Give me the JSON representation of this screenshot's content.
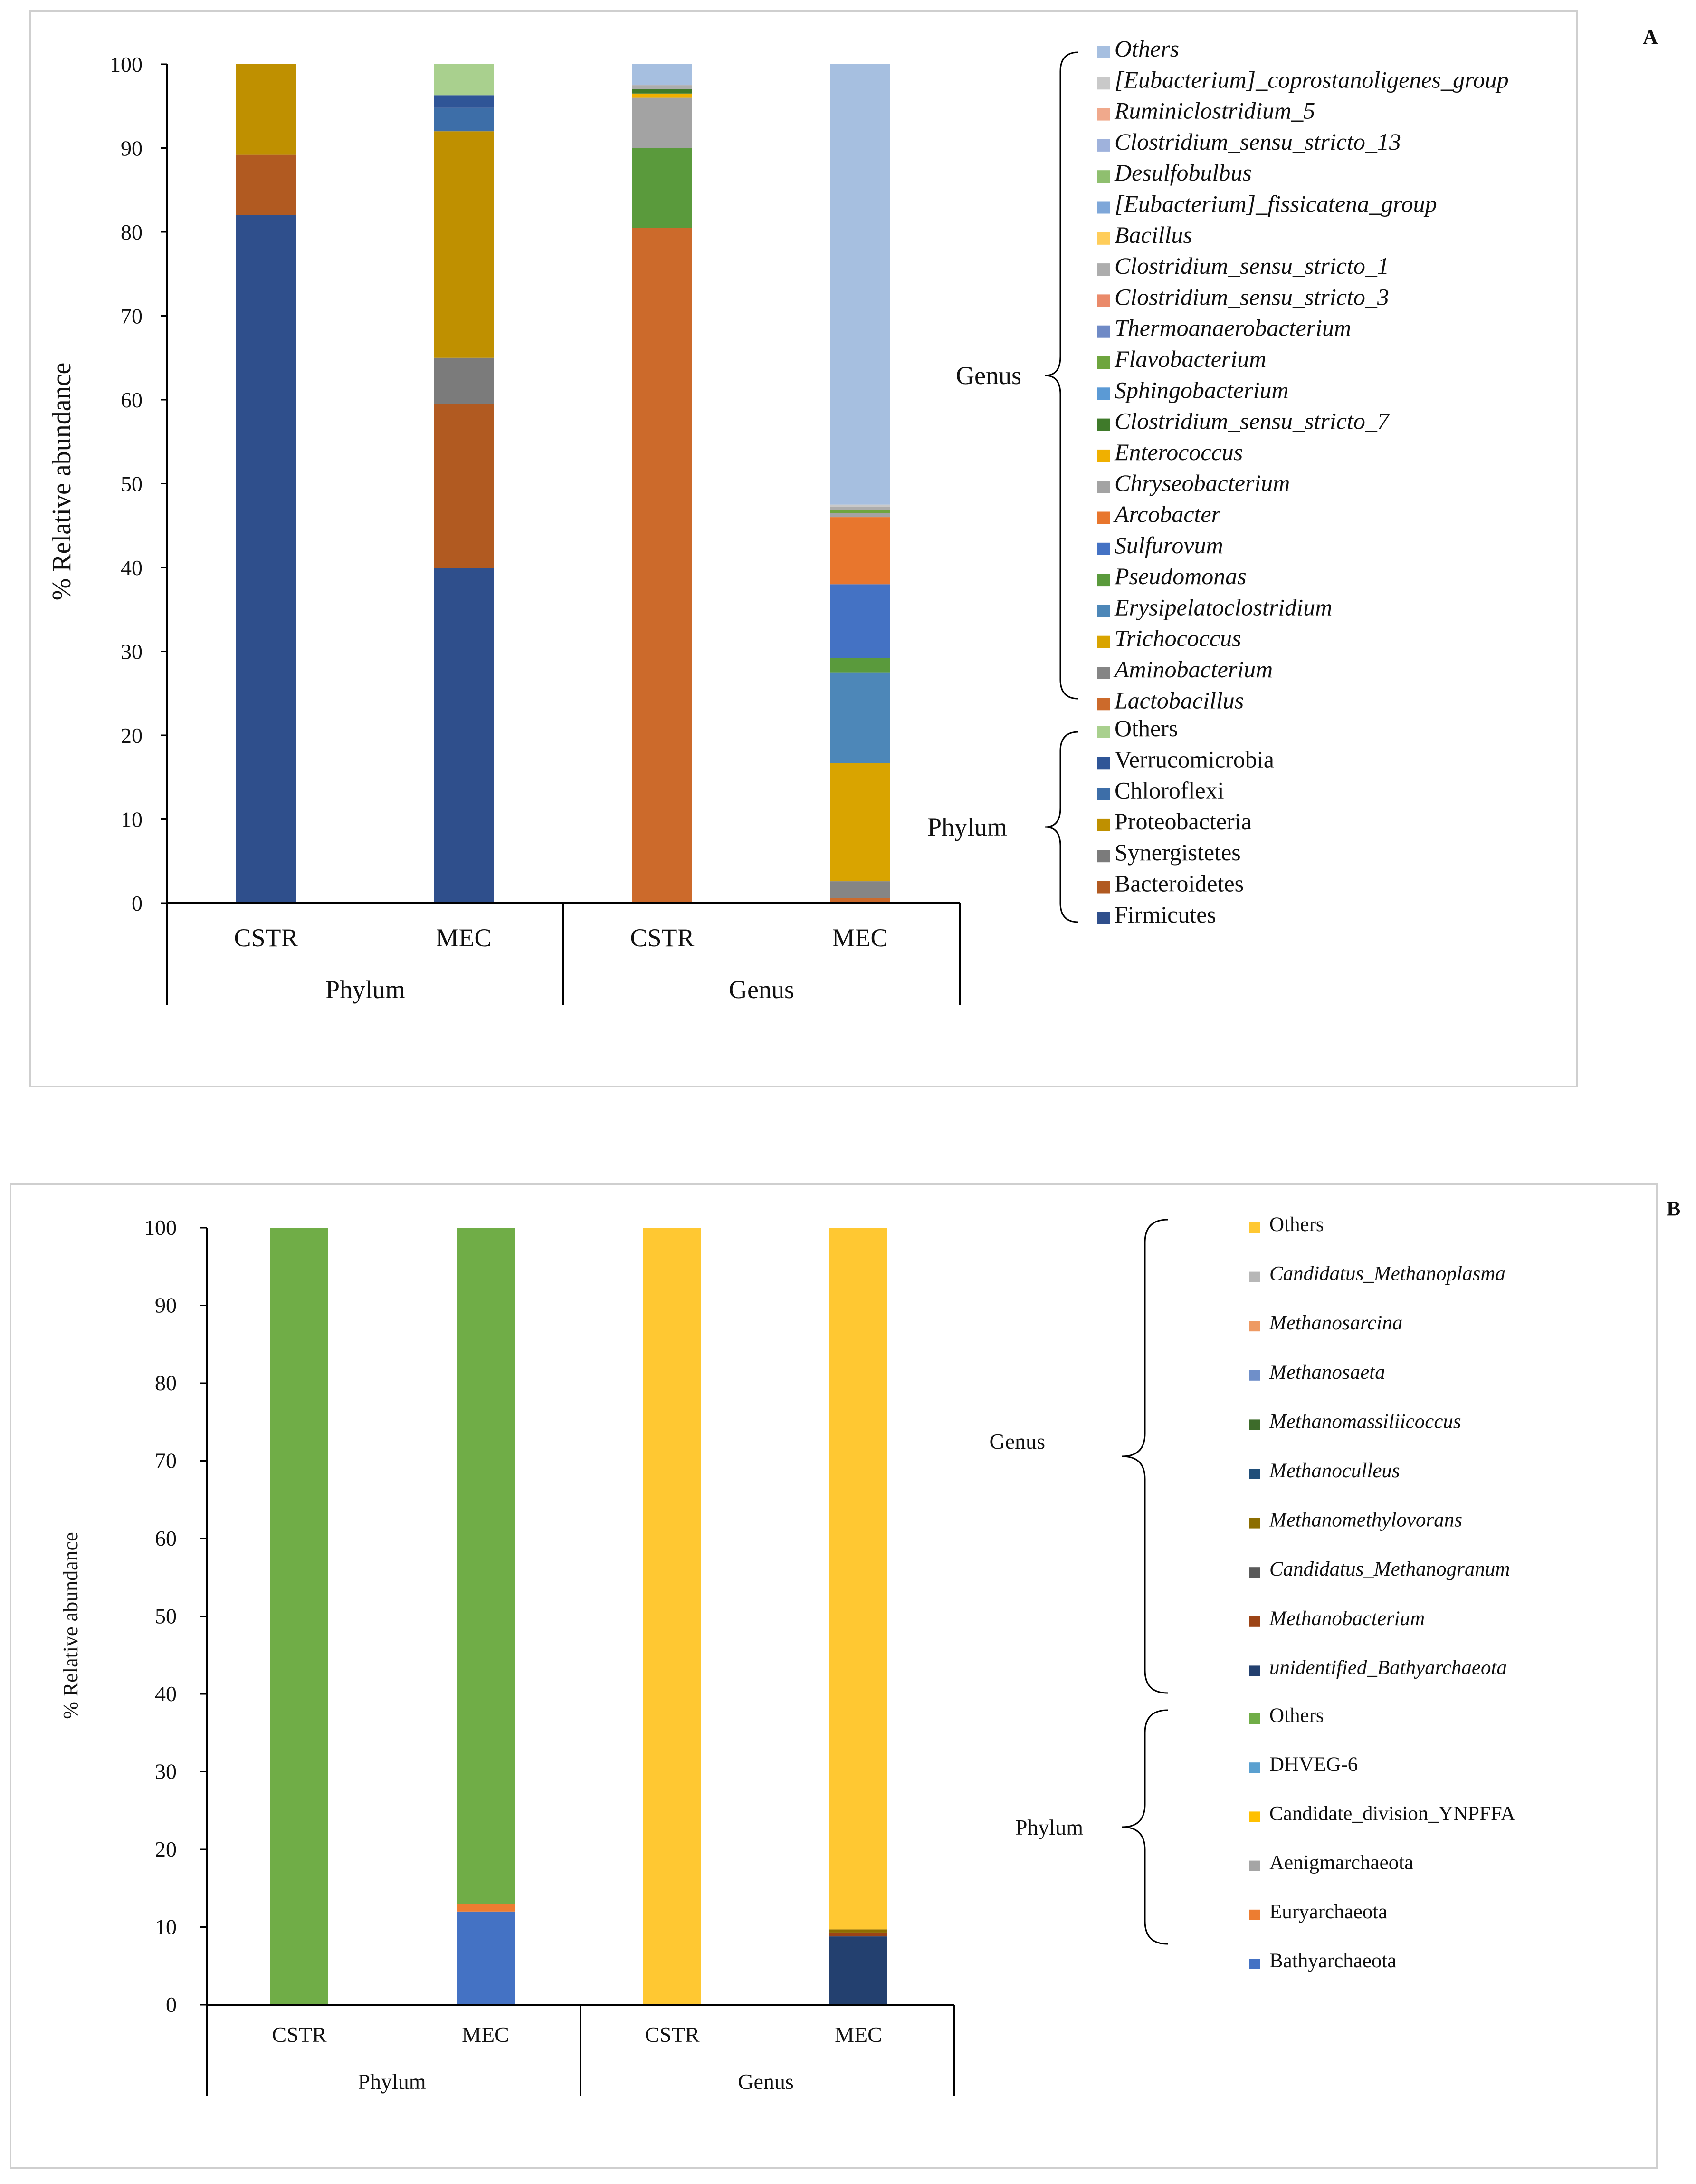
{
  "panels": [
    {
      "id": "A",
      "label": "A",
      "ylabel": "% Relative abundance",
      "ylim": [
        0,
        100
      ],
      "yticks": [
        0,
        10,
        20,
        30,
        40,
        50,
        60,
        70,
        80,
        90,
        100
      ],
      "columns": [
        "CSTR",
        "MEC",
        "CSTR",
        "MEC"
      ],
      "groups": [
        "Phylum",
        "Genus"
      ],
      "legend_groups": [
        {
          "name": "Genus",
          "items": [
            {
              "label": "Others",
              "color": "#a6bfe0",
              "italic": true
            },
            {
              "label": "[Eubacterium]_coprostanoligenes_group",
              "color": "#c9c9c9",
              "italic": true
            },
            {
              "label": "Ruminiclostridium_5",
              "color": "#f0a98c",
              "italic": true
            },
            {
              "label": "Clostridium_sensu_stricto_13",
              "color": "#9fb2dc",
              "italic": true
            },
            {
              "label": "Desulfobulbus",
              "color": "#8fbf6f",
              "italic": true
            },
            {
              "label": "[Eubacterium]_fissicatena_group",
              "color": "#7ea7d9",
              "italic": true
            },
            {
              "label": "Bacillus",
              "color": "#ffcd5a",
              "italic": true
            },
            {
              "label": "Clostridium_sensu_stricto_1",
              "color": "#adadad",
              "italic": true
            },
            {
              "label": "Clostridium_sensu_stricto_3",
              "color": "#ea8a6a",
              "italic": true
            },
            {
              "label": "Thermoanaerobacterium",
              "color": "#6f8ac6",
              "italic": true
            },
            {
              "label": "Flavobacterium",
              "color": "#6ea53e",
              "italic": true
            },
            {
              "label": "Sphingobacterium",
              "color": "#5b9ad5",
              "italic": true
            },
            {
              "label": "Clostridium_sensu_stricto_7",
              "color": "#3f7a2a",
              "italic": true
            },
            {
              "label": "Enterococcus",
              "color": "#f0b000",
              "italic": true
            },
            {
              "label": "Chryseobacterium",
              "color": "#a3a3a3",
              "italic": true
            },
            {
              "label": "Arcobacter",
              "color": "#e8762d",
              "italic": true
            },
            {
              "label": "Sulfurovum",
              "color": "#4472c4",
              "italic": true
            },
            {
              "label": "Pseudomonas",
              "color": "#5a9a3c",
              "italic": true
            },
            {
              "label": "Erysipelatoclostridium",
              "color": "#4d87b8",
              "italic": true
            },
            {
              "label": "Trichococcus",
              "color": "#d9a400",
              "italic": true
            },
            {
              "label": "Aminobacterium",
              "color": "#858585",
              "italic": true
            },
            {
              "label": "Lactobacillus",
              "color": "#cc6a2b",
              "italic": true
            }
          ]
        },
        {
          "name": "Phylum",
          "items": [
            {
              "label": "Others",
              "color": "#a9d08e",
              "italic": false
            },
            {
              "label": "Verrucomicrobia",
              "color": "#2f5597",
              "italic": false
            },
            {
              "label": "Chloroflexi",
              "color": "#3d6ea8",
              "italic": false
            },
            {
              "label": "Proteobacteria",
              "color": "#bf9000",
              "italic": false
            },
            {
              "label": "Synergistetes",
              "color": "#7b7b7b",
              "italic": false
            },
            {
              "label": "Bacteroidetes",
              "color": "#b15a21",
              "italic": false
            },
            {
              "label": "Firmicutes",
              "color": "#2f4f8c",
              "italic": false
            }
          ]
        }
      ]
    },
    {
      "id": "B",
      "label": "B",
      "ylabel": "% Relative abundance",
      "ylim": [
        0,
        100
      ],
      "yticks": [
        0,
        10,
        20,
        30,
        40,
        50,
        60,
        70,
        80,
        90,
        100
      ],
      "columns": [
        "CSTR",
        "MEC",
        "CSTR",
        "MEC"
      ],
      "groups": [
        "Phylum",
        "Genus"
      ],
      "legend_groups": [
        {
          "name": "Genus",
          "items": [
            {
              "label": "Others",
              "color": "#ffc832",
              "italic": false
            },
            {
              "label": "Candidatus_Methanoplasma",
              "color": "#b7b7b7",
              "italic": true
            },
            {
              "label": "Methanosarcina",
              "color": "#ee9a63",
              "italic": true
            },
            {
              "label": "Methanosaeta",
              "color": "#6f8fc9",
              "italic": true
            },
            {
              "label": "Methanomassiliicoccus",
              "color": "#3d6b2a",
              "italic": true
            },
            {
              "label": "Methanoculleus",
              "color": "#1f4e79",
              "italic": true
            },
            {
              "label": "Methanomethylovorans",
              "color": "#8c6d00",
              "italic": true
            },
            {
              "label": "Candidatus_Methanogranum",
              "color": "#5a5a5a",
              "italic": true
            },
            {
              "label": "Methanobacterium",
              "color": "#9c4416",
              "italic": true
            },
            {
              "label": "unidentified_Bathyarchaeota",
              "color": "#23406f",
              "italic": true
            }
          ]
        },
        {
          "name": "Phylum",
          "items": [
            {
              "label": "Others",
              "color": "#70ad47",
              "italic": false
            },
            {
              "label": "DHVEG-6",
              "color": "#5aa0d0",
              "italic": false
            },
            {
              "label": "Candidate_division_YNPFFA",
              "color": "#ffc000",
              "italic": false
            },
            {
              "label": "Aenigmarchaeota",
              "color": "#a5a5a5",
              "italic": false
            },
            {
              "label": "Euryarchaeota",
              "color": "#ed7d31",
              "italic": false
            },
            {
              "label": "Bathyarchaeota",
              "color": "#4472c4",
              "italic": false
            }
          ]
        }
      ]
    }
  ],
  "chart_data": [
    {
      "type": "bar",
      "panel": "A",
      "stacked": true,
      "title": "",
      "xlabel": "",
      "ylabel": "% Relative abundance",
      "ylim": [
        0,
        100
      ],
      "categories": [
        "Phylum CSTR",
        "Phylum MEC",
        "Genus CSTR",
        "Genus MEC"
      ],
      "bars": [
        {
          "column": "CSTR",
          "group": "Phylum",
          "segments": [
            {
              "name": "Firmicutes",
              "value": 82.0,
              "color": "#2f4f8c"
            },
            {
              "name": "Bacteroidetes",
              "value": 7.2,
              "color": "#b15a21"
            },
            {
              "name": "Proteobacteria",
              "value": 10.8,
              "color": "#bf9000"
            }
          ]
        },
        {
          "column": "MEC",
          "group": "Phylum",
          "segments": [
            {
              "name": "Firmicutes",
              "value": 40.0,
              "color": "#2f4f8c"
            },
            {
              "name": "Bacteroidetes",
              "value": 19.5,
              "color": "#b15a21"
            },
            {
              "name": "Synergistetes",
              "value": 5.5,
              "color": "#7b7b7b"
            },
            {
              "name": "Proteobacteria",
              "value": 27.0,
              "color": "#bf9000"
            },
            {
              "name": "Chloroflexi",
              "value": 2.8,
              "color": "#3d6ea8"
            },
            {
              "name": "Verrucomicrobia",
              "value": 1.5,
              "color": "#2f5597"
            },
            {
              "name": "Others",
              "value": 3.7,
              "color": "#a9d08e"
            }
          ]
        },
        {
          "column": "CSTR",
          "group": "Genus",
          "segments": [
            {
              "name": "Lactobacillus",
              "value": 80.5,
              "color": "#cc6a2b"
            },
            {
              "name": "Pseudomonas",
              "value": 9.5,
              "color": "#5a9a3c"
            },
            {
              "name": "Chryseobacterium",
              "value": 6.0,
              "color": "#a3a3a3"
            },
            {
              "name": "Enterococcus",
              "value": 0.5,
              "color": "#f0b000"
            },
            {
              "name": "Clostridium_sensu_stricto_7",
              "value": 0.5,
              "color": "#3f7a2a"
            },
            {
              "name": "Clostridium_sensu_stricto_1",
              "value": 0.5,
              "color": "#adadad"
            },
            {
              "name": "Others",
              "value": 2.5,
              "color": "#a6bfe0"
            }
          ]
        },
        {
          "column": "MEC",
          "group": "Genus",
          "segments": [
            {
              "name": "Lactobacillus",
              "value": 0.6,
              "color": "#cc6a2b"
            },
            {
              "name": "Aminobacterium",
              "value": 2.0,
              "color": "#858585"
            },
            {
              "name": "Trichococcus",
              "value": 14.1,
              "color": "#d9a400"
            },
            {
              "name": "Erysipelatoclostridium",
              "value": 10.8,
              "color": "#4d87b8"
            },
            {
              "name": "Pseudomonas",
              "value": 1.7,
              "color": "#5a9a3c"
            },
            {
              "name": "Sulfurovum",
              "value": 8.8,
              "color": "#4472c4"
            },
            {
              "name": "Arcobacter",
              "value": 8.0,
              "color": "#e8762d"
            },
            {
              "name": "Chryseobacterium",
              "value": 0.5,
              "color": "#a3a3a3"
            },
            {
              "name": "Flavobacterium",
              "value": 0.4,
              "color": "#6ea53e"
            },
            {
              "name": "Clostridium_sensu_stricto_1",
              "value": 0.3,
              "color": "#adadad"
            },
            {
              "name": "[Eubacterium]_coprostanoligenes_group",
              "value": 0.3,
              "color": "#c9c9c9"
            },
            {
              "name": "Others",
              "value": 52.5,
              "color": "#a6bfe0"
            }
          ]
        }
      ]
    },
    {
      "type": "bar",
      "panel": "B",
      "stacked": true,
      "title": "",
      "xlabel": "",
      "ylabel": "% Relative abundance",
      "ylim": [
        0,
        100
      ],
      "categories": [
        "Phylum CSTR",
        "Phylum MEC",
        "Genus CSTR",
        "Genus MEC"
      ],
      "bars": [
        {
          "column": "CSTR",
          "group": "Phylum",
          "segments": [
            {
              "name": "Others",
              "value": 100.0,
              "color": "#70ad47"
            }
          ]
        },
        {
          "column": "MEC",
          "group": "Phylum",
          "segments": [
            {
              "name": "Bathyarchaeota",
              "value": 12.0,
              "color": "#4472c4"
            },
            {
              "name": "Euryarchaeota",
              "value": 1.0,
              "color": "#ed7d31"
            },
            {
              "name": "Others",
              "value": 87.0,
              "color": "#70ad47"
            }
          ]
        },
        {
          "column": "CSTR",
          "group": "Genus",
          "segments": [
            {
              "name": "Others",
              "value": 100.0,
              "color": "#ffc832"
            }
          ]
        },
        {
          "column": "MEC",
          "group": "Genus",
          "segments": [
            {
              "name": "unidentified_Bathyarchaeota",
              "value": 8.8,
              "color": "#23406f"
            },
            {
              "name": "Methanobacterium",
              "value": 0.5,
              "color": "#9c4416"
            },
            {
              "name": "Methanomethylovorans",
              "value": 0.4,
              "color": "#8c6d00"
            },
            {
              "name": "Others",
              "value": 90.3,
              "color": "#ffc832"
            }
          ]
        }
      ]
    }
  ]
}
